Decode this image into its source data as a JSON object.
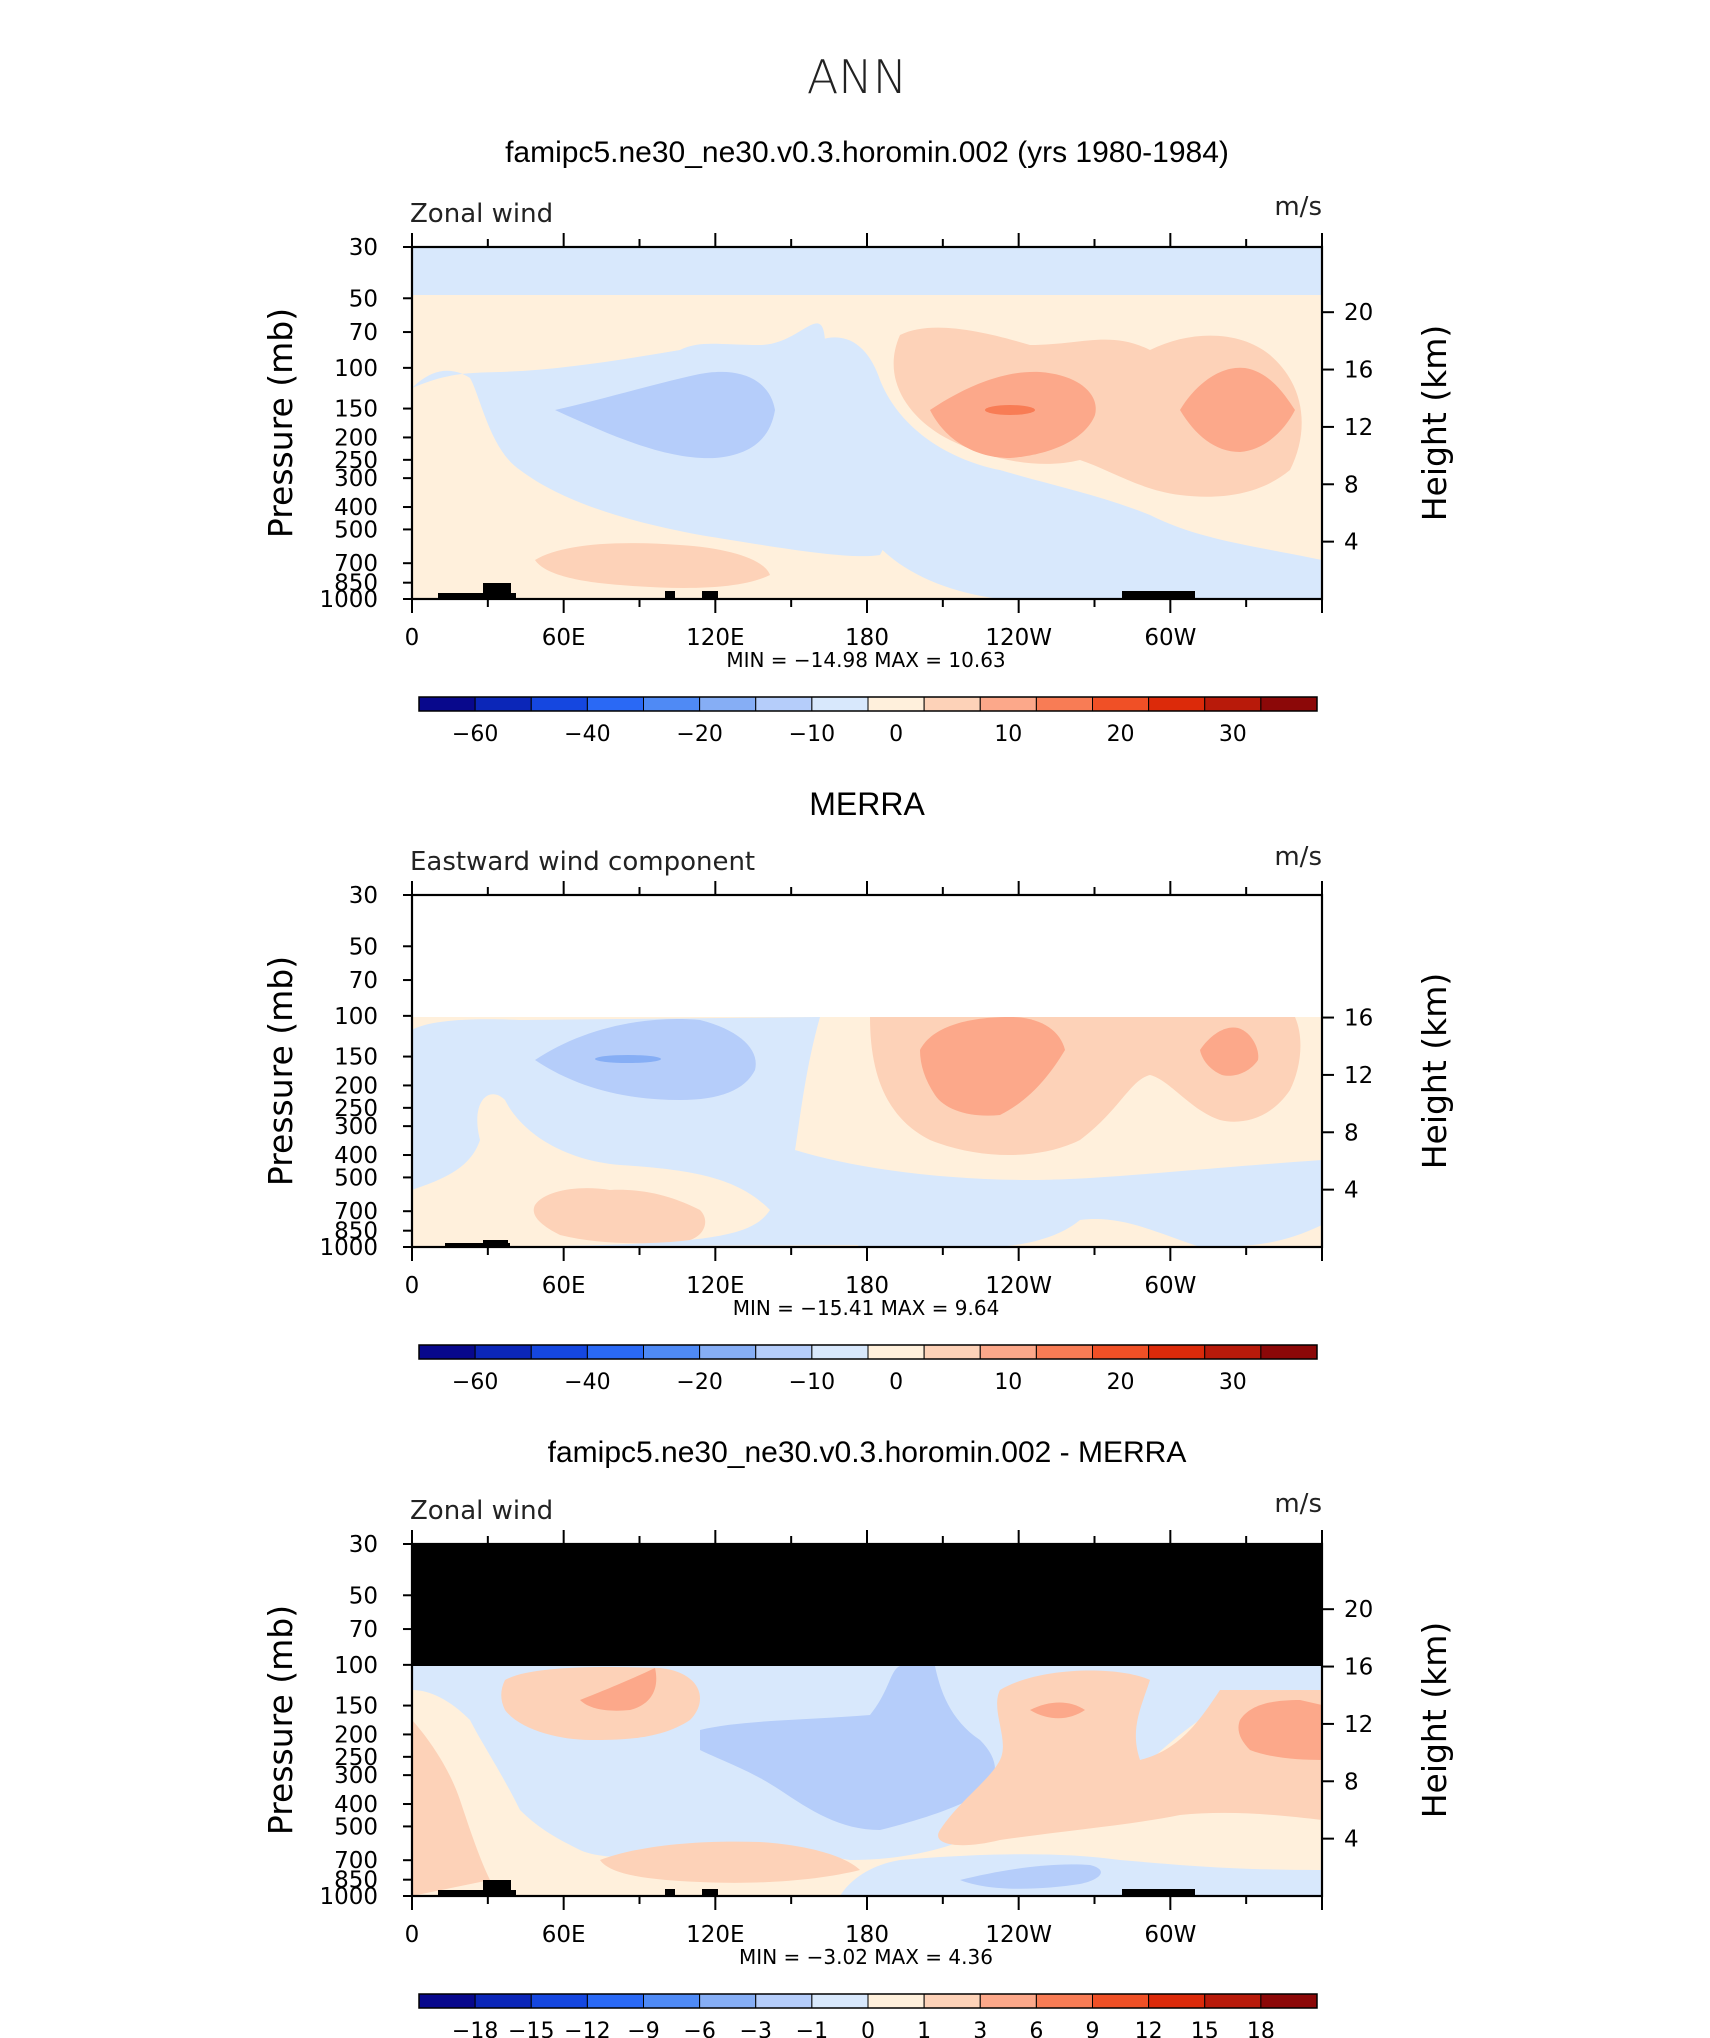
{
  "main_title": "ANN",
  "colors": {
    "palette": [
      "#08088c",
      "#0b26b8",
      "#1547e0",
      "#2a69f5",
      "#4f8af5",
      "#86aef5",
      "#b5cdfa",
      "#d8e8fc",
      "#fff0dc",
      "#fdd2b8",
      "#fca88a",
      "#f87c55",
      "#f05026",
      "#dc2a0a",
      "#b81a0a",
      "#8c0808"
    ]
  },
  "panels": [
    {
      "title": "famipc5.ne30_ne30.v0.3.horomin.002 (yrs 1980-1984)",
      "left_label": "Zonal wind",
      "units": "m/s",
      "ylabel": "Pressure (mb)",
      "ylabel_right": "Height (km)",
      "stats": "MIN =  −14.98   MAX =   10.63",
      "yticks": [
        "30",
        "50",
        "70",
        "100",
        "150",
        "200",
        "250",
        "300",
        "400",
        "500",
        "700",
        "850",
        "1000"
      ],
      "height_ticks": [
        "20",
        "16",
        "12",
        "8",
        "4"
      ],
      "xticks": [
        "0",
        "60E",
        "120E",
        "180",
        "120W",
        "60W"
      ],
      "colorbar_labels": [
        "−60",
        "−40",
        "−20",
        "−10",
        "0",
        "10",
        "20",
        "30"
      ]
    },
    {
      "title": "MERRA",
      "left_label": "Eastward wind component",
      "units": "m/s",
      "ylabel": "Pressure (mb)",
      "ylabel_right": "Height (km)",
      "stats": "MIN =  −15.41   MAX =    9.64",
      "yticks": [
        "30",
        "50",
        "70",
        "100",
        "150",
        "200",
        "250",
        "300",
        "400",
        "500",
        "700",
        "850",
        "1000"
      ],
      "height_ticks": [
        "16",
        "12",
        "8",
        "4"
      ],
      "xticks": [
        "0",
        "60E",
        "120E",
        "180",
        "120W",
        "60W"
      ],
      "colorbar_labels": [
        "−60",
        "−40",
        "−20",
        "−10",
        "0",
        "10",
        "20",
        "30"
      ]
    },
    {
      "title": "famipc5.ne30_ne30.v0.3.horomin.002 - MERRA",
      "left_label": "Zonal wind",
      "units": "m/s",
      "ylabel": "Pressure (mb)",
      "ylabel_right": "Height (km)",
      "stats": "MIN =    −3.02   MAX =    4.36",
      "yticks": [
        "30",
        "50",
        "70",
        "100",
        "150",
        "200",
        "250",
        "300",
        "400",
        "500",
        "700",
        "850",
        "1000"
      ],
      "height_ticks": [
        "20",
        "16",
        "12",
        "8",
        "4"
      ],
      "xticks": [
        "0",
        "60E",
        "120E",
        "180",
        "120W",
        "60W"
      ],
      "colorbar_labels": [
        "−18",
        "−15",
        "−12",
        "−9",
        "−6",
        "−3",
        "−1",
        "0",
        "1",
        "3",
        "6",
        "9",
        "12",
        "15",
        "18"
      ]
    }
  ],
  "chart_data": [
    {
      "type": "heatmap",
      "title": "famipc5.ne30_ne30.v0.3.horomin.002 (yrs 1980-1984)",
      "variable": "Zonal wind",
      "units": "m/s",
      "xlabel": "",
      "ylabel": "Pressure (mb)",
      "x_range": [
        0,
        360
      ],
      "y_range_mb": [
        1000,
        30
      ],
      "min": -14.98,
      "max": 10.63,
      "contour_levels": [
        -70,
        -60,
        -50,
        -40,
        -30,
        -20,
        -15,
        -10,
        -5,
        0,
        5,
        10,
        15,
        20,
        25,
        30,
        35
      ],
      "features": [
        {
          "lon": 90,
          "p": 150,
          "value": -12
        },
        {
          "lon": 230,
          "p": 150,
          "value": 10.5
        },
        {
          "lon": 325,
          "p": 150,
          "value": 8
        },
        {
          "lon": 110,
          "p": 750,
          "value": 4
        },
        {
          "lon": 180,
          "p": 40,
          "value": -2
        },
        {
          "lon": 180,
          "p": 70,
          "value": 2
        }
      ]
    },
    {
      "type": "heatmap",
      "title": "MERRA",
      "variable": "Eastward wind component",
      "units": "m/s",
      "xlabel": "",
      "ylabel": "Pressure (mb)",
      "x_range": [
        0,
        360
      ],
      "y_range_mb": [
        1000,
        30
      ],
      "min": -15.41,
      "max": 9.64,
      "contour_levels": [
        -70,
        -60,
        -50,
        -40,
        -30,
        -20,
        -15,
        -10,
        -5,
        0,
        5,
        10,
        15,
        20,
        25,
        30,
        35
      ],
      "features": [
        {
          "lon": 100,
          "p": 150,
          "value": -14
        },
        {
          "lon": 220,
          "p": 160,
          "value": 9
        },
        {
          "lon": 320,
          "p": 150,
          "value": 7
        },
        {
          "lon": 110,
          "p": 750,
          "value": 3
        }
      ]
    },
    {
      "type": "heatmap",
      "title": "famipc5.ne30_ne30.v0.3.horomin.002 - MERRA",
      "variable": "Zonal wind",
      "units": "m/s",
      "xlabel": "",
      "ylabel": "Pressure (mb)",
      "x_range": [
        0,
        360
      ],
      "y_range_mb": [
        1000,
        30
      ],
      "min": -3.02,
      "max": 4.36,
      "contour_levels": [
        -21,
        -18,
        -15,
        -12,
        -9,
        -6,
        -3,
        -1,
        0,
        1,
        3,
        6,
        9,
        12,
        15,
        18,
        21
      ],
      "features": [
        {
          "lon": 155,
          "p": 300,
          "value": -2
        },
        {
          "lon": 340,
          "p": 170,
          "value": 3
        },
        {
          "lon": 80,
          "p": 150,
          "value": 3
        },
        {
          "lon": 255,
          "p": 150,
          "value": 2
        },
        {
          "lon": 140,
          "p": 700,
          "value": 2
        }
      ]
    }
  ]
}
